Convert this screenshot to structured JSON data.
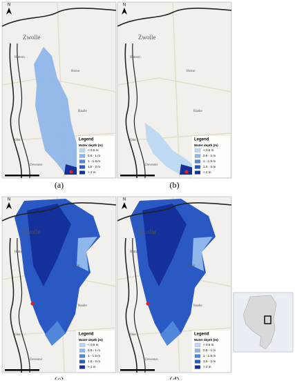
{
  "north": "N",
  "legend": {
    "title": "Legend",
    "subtitle": "Water depth (m)",
    "classes": [
      {
        "label": "< 0.5 m",
        "color": "#bcd7f2"
      },
      {
        "label": "0.5 - 1 m",
        "color": "#8fb6ea"
      },
      {
        "label": "1 - 1.5 m",
        "color": "#5286d9"
      },
      {
        "label": "1.5 - 2 m",
        "color": "#2a59c4"
      },
      {
        "label": "> 2 m",
        "color": "#14309a"
      }
    ]
  },
  "places": [
    "Zwolle",
    "Hattem",
    "Heino",
    "Raalte",
    "Olst",
    "Deventer"
  ],
  "panels": [
    {
      "label": "(a)"
    },
    {
      "label": "(b)"
    },
    {
      "label": "(c)"
    },
    {
      "label": "(d)"
    }
  ]
}
